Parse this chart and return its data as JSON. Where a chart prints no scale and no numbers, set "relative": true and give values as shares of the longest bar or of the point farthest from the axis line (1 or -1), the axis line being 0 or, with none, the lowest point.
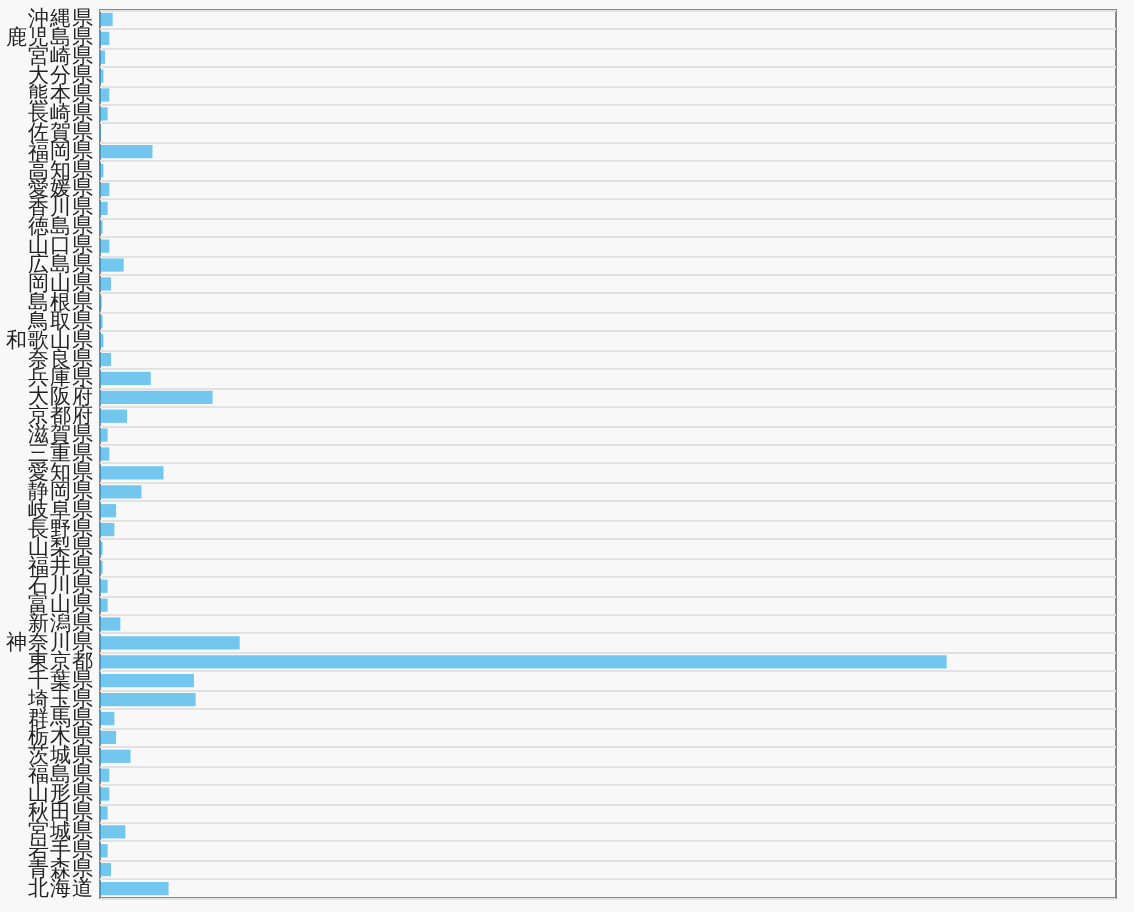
{
  "chart_data": {
    "type": "bar",
    "orientation": "horizontal",
    "relative": true,
    "grid": true,
    "categories": [
      "沖縄県",
      "鹿児島県",
      "宮崎県",
      "大分県",
      "熊本県",
      "長崎県",
      "佐賀県",
      "福岡県",
      "高知県",
      "愛媛県",
      "香川県",
      "徳島県",
      "山口県",
      "広島県",
      "岡山県",
      "島根県",
      "鳥取県",
      "和歌山県",
      "奈良県",
      "兵庫県",
      "大阪府",
      "京都府",
      "滋賀県",
      "三重県",
      "愛知県",
      "静岡県",
      "岐阜県",
      "長野県",
      "山梨県",
      "福井県",
      "石川県",
      "富山県",
      "新潟県",
      "神奈川県",
      "東京都",
      "千葉県",
      "埼玉県",
      "群馬県",
      "栃木県",
      "茨城県",
      "福島県",
      "山形県",
      "秋田県",
      "宮城県",
      "岩手県",
      "青森県",
      "北海道"
    ],
    "color": "#1aa7e8",
    "values": [
      0.015,
      0.011,
      0.006,
      0.004,
      0.011,
      0.009,
      0.001,
      0.062,
      0.004,
      0.011,
      0.009,
      0.003,
      0.011,
      0.028,
      0.013,
      0.002,
      0.003,
      0.004,
      0.013,
      0.06,
      0.133,
      0.032,
      0.009,
      0.011,
      0.075,
      0.049,
      0.019,
      0.017,
      0.003,
      0.003,
      0.009,
      0.009,
      0.024,
      0.165,
      1,
      0.111,
      0.113,
      0.017,
      0.019,
      0.036,
      0.011,
      0.011,
      0.009,
      0.03,
      0.009,
      0.013,
      0.081
    ]
  }
}
